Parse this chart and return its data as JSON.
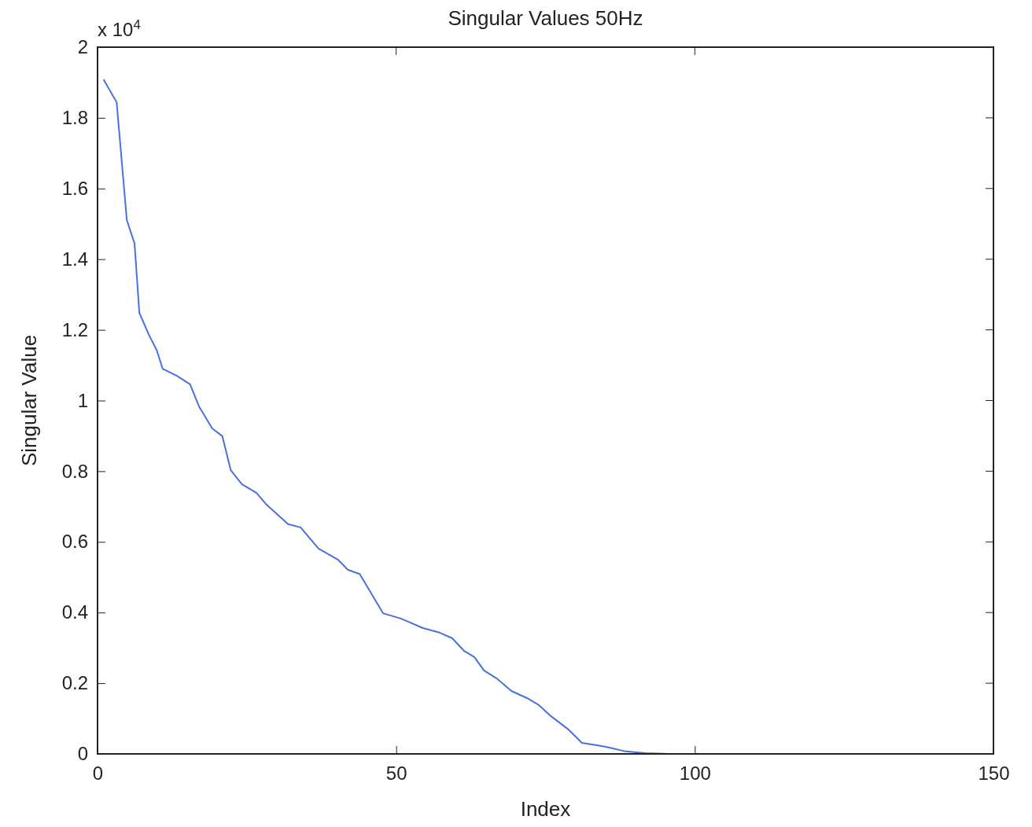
{
  "chart_data": {
    "type": "line",
    "title": "Singular Values 50Hz",
    "xlabel": "Index",
    "ylabel": "Singular Value",
    "annotations": [
      "x 10$^{4}$"
    ],
    "series": [
      {
        "color": "#4a70dc",
        "x": [
          1,
          3.2,
          4.9,
          6.2,
          7.0,
          8.6,
          9.9,
          10.9,
          13.3,
          15.5,
          17.0,
          19.2,
          20.9,
          22.3,
          24.2,
          26.6,
          28.2,
          31.9,
          34.0,
          37.0,
          40.3,
          41.9,
          43.9,
          47.8,
          50.8,
          54.5,
          57.3,
          59.4,
          61.4,
          63.1,
          64.7,
          66.8,
          69.3,
          71.9,
          73.9,
          75.9,
          78.7,
          81.1,
          83.8,
          85.7,
          88.4,
          91.7,
          95.6,
          150
        ],
        "values": [
          1.909,
          1.844,
          1.511,
          1.444,
          1.248,
          1.186,
          1.143,
          1.09,
          1.07,
          1.046,
          0.983,
          0.921,
          0.899,
          0.803,
          0.763,
          0.739,
          0.707,
          0.65,
          0.641,
          0.581,
          0.549,
          0.521,
          0.509,
          0.398,
          0.383,
          0.356,
          0.343,
          0.327,
          0.291,
          0.274,
          0.236,
          0.214,
          0.178,
          0.158,
          0.138,
          0.107,
          0.071,
          0.031,
          0.024,
          0.018,
          0.007,
          0.002,
          0,
          0
        ]
      }
    ],
    "xlim": [
      0,
      150
    ],
    "xticks": [
      0,
      50,
      100,
      150
    ],
    "ylim": [
      0,
      2
    ],
    "yticks": [
      0,
      0.2,
      0.4,
      0.6,
      0.8,
      1,
      1.2,
      1.4,
      1.6,
      1.8,
      2
    ],
    "marker": "none",
    "line_style": "solid"
  }
}
